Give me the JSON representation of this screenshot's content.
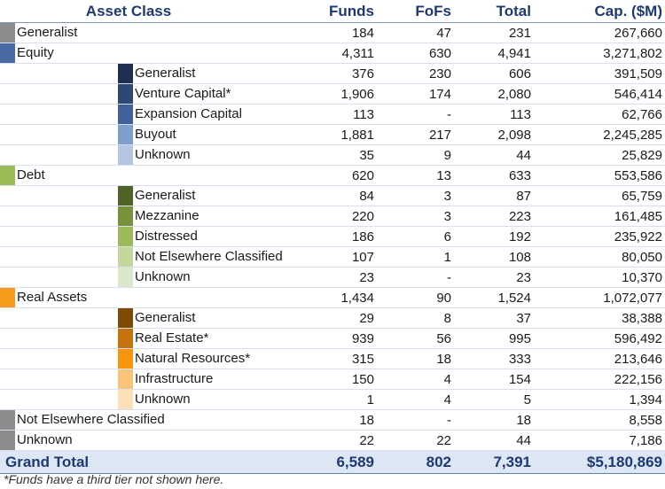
{
  "headers": {
    "asset_class": "Asset Class",
    "funds": "Funds",
    "fofs": "FoFs",
    "total": "Total",
    "cap": "Cap. ($M)"
  },
  "rows": [
    {
      "level": 1,
      "name": "Generalist",
      "color": "#8c8c8c",
      "funds": "184",
      "fofs": "47",
      "total": "231",
      "cap": "267,660"
    },
    {
      "level": 1,
      "name": "Equity",
      "color": "#4a6aa5",
      "funds": "4,311",
      "fofs": "630",
      "total": "4,941",
      "cap": "3,271,802"
    },
    {
      "level": 2,
      "name": "Generalist",
      "color": "#1f2f4f",
      "funds": "376",
      "fofs": "230",
      "total": "606",
      "cap": "391,509"
    },
    {
      "level": 2,
      "name": "Venture Capital*",
      "color": "#2f4677",
      "funds": "1,906",
      "fofs": "174",
      "total": "2,080",
      "cap": "546,414"
    },
    {
      "level": 2,
      "name": "Expansion Capital",
      "color": "#41609c",
      "funds": "113",
      "fofs": "-",
      "total": "113",
      "cap": "62,766"
    },
    {
      "level": 2,
      "name": "Buyout",
      "color": "#7f9dcd",
      "funds": "1,881",
      "fofs": "217",
      "total": "2,098",
      "cap": "2,245,285"
    },
    {
      "level": 2,
      "name": "Unknown",
      "color": "#b4c6e3",
      "funds": "35",
      "fofs": "9",
      "total": "44",
      "cap": "25,829"
    },
    {
      "level": 1,
      "name": "Debt",
      "color": "#9bbb59",
      "funds": "620",
      "fofs": "13",
      "total": "633",
      "cap": "553,586"
    },
    {
      "level": 2,
      "name": "Generalist",
      "color": "#4f6228",
      "funds": "84",
      "fofs": "3",
      "total": "87",
      "cap": "65,759"
    },
    {
      "level": 2,
      "name": "Mezzanine",
      "color": "#76923c",
      "funds": "220",
      "fofs": "3",
      "total": "223",
      "cap": "161,485"
    },
    {
      "level": 2,
      "name": "Distressed",
      "color": "#9bbb59",
      "funds": "186",
      "fofs": "6",
      "total": "192",
      "cap": "235,922"
    },
    {
      "level": 2,
      "name": "Not Elsewhere Classified",
      "color": "#c3d69b",
      "funds": "107",
      "fofs": "1",
      "total": "108",
      "cap": "80,050"
    },
    {
      "level": 2,
      "name": "Unknown",
      "color": "#dbe7c8",
      "funds": "23",
      "fofs": "-",
      "total": "23",
      "cap": "10,370"
    },
    {
      "level": 1,
      "name": "Real Assets",
      "color": "#f79b1d",
      "funds": "1,434",
      "fofs": "90",
      "total": "1,524",
      "cap": "1,072,077"
    },
    {
      "level": 2,
      "name": "Generalist",
      "color": "#7f4a06",
      "funds": "29",
      "fofs": "8",
      "total": "37",
      "cap": "38,388"
    },
    {
      "level": 2,
      "name": "Real Estate*",
      "color": "#c6720f",
      "funds": "939",
      "fofs": "56",
      "total": "995",
      "cap": "596,492"
    },
    {
      "level": 2,
      "name": "Natural Resources*",
      "color": "#f7950f",
      "funds": "315",
      "fofs": "18",
      "total": "333",
      "cap": "213,646"
    },
    {
      "level": 2,
      "name": "Infrastructure",
      "color": "#fbc37a",
      "funds": "150",
      "fofs": "4",
      "total": "154",
      "cap": "222,156"
    },
    {
      "level": 2,
      "name": "Unknown",
      "color": "#fde0b8",
      "funds": "1",
      "fofs": "4",
      "total": "5",
      "cap": "1,394"
    },
    {
      "level": 1,
      "name": "Not Elsewhere Classified",
      "color": "#8c8c8c",
      "funds": "18",
      "fofs": "-",
      "total": "18",
      "cap": "8,558"
    },
    {
      "level": 1,
      "name": "Unknown",
      "color": "#8c8c8c",
      "funds": "22",
      "fofs": "22",
      "total": "44",
      "cap": "7,186"
    }
  ],
  "grand_total": {
    "label": "Grand Total",
    "funds": "6,589",
    "fofs": "802",
    "total": "7,391",
    "cap": "$5,180,869"
  },
  "footnote": "*Funds have a third tier not shown here."
}
